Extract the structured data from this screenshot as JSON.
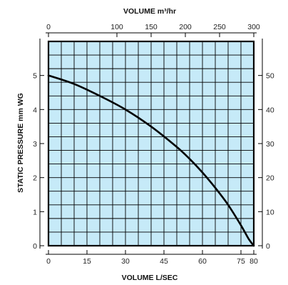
{
  "chart_data": {
    "type": "line",
    "top_axis_label": "VOLUME m³/hr",
    "bottom_axis_label": "VOLUME L/SEC",
    "left_axis_label": "STATIC PRESSURE mm WG",
    "top_xlim": [
      0,
      300
    ],
    "top_ticks": [
      "0",
      "100",
      "150",
      "200",
      "250",
      "300"
    ],
    "top_tick_values": [
      0,
      100,
      150,
      200,
      250,
      300
    ],
    "xlim": [
      0,
      80
    ],
    "bottom_ticks": [
      "0",
      "15",
      "30",
      "45",
      "60",
      "75",
      "80"
    ],
    "bottom_tick_values": [
      0,
      15,
      30,
      45,
      60,
      75,
      80
    ],
    "ylim": [
      0,
      6
    ],
    "left_ticks": [
      "0",
      "1",
      "2",
      "3",
      "4",
      "5"
    ],
    "left_tick_values": [
      0,
      1,
      2,
      3,
      4,
      5
    ],
    "right_ylim": [
      0,
      60
    ],
    "right_ticks": [
      "0",
      "10",
      "20",
      "30",
      "40",
      "50"
    ],
    "right_tick_values": [
      0,
      10,
      20,
      30,
      40,
      50
    ],
    "grid": true,
    "plot_background": "#c6eaf8",
    "line_color": "#000000",
    "series": [
      {
        "x": [
          0,
          10,
          20,
          30,
          40,
          50,
          55,
          60,
          65,
          70,
          75,
          78,
          80
        ],
        "y": [
          5.0,
          4.75,
          4.4,
          4.0,
          3.5,
          2.9,
          2.55,
          2.15,
          1.7,
          1.2,
          0.6,
          0.2,
          0.0
        ]
      }
    ]
  }
}
